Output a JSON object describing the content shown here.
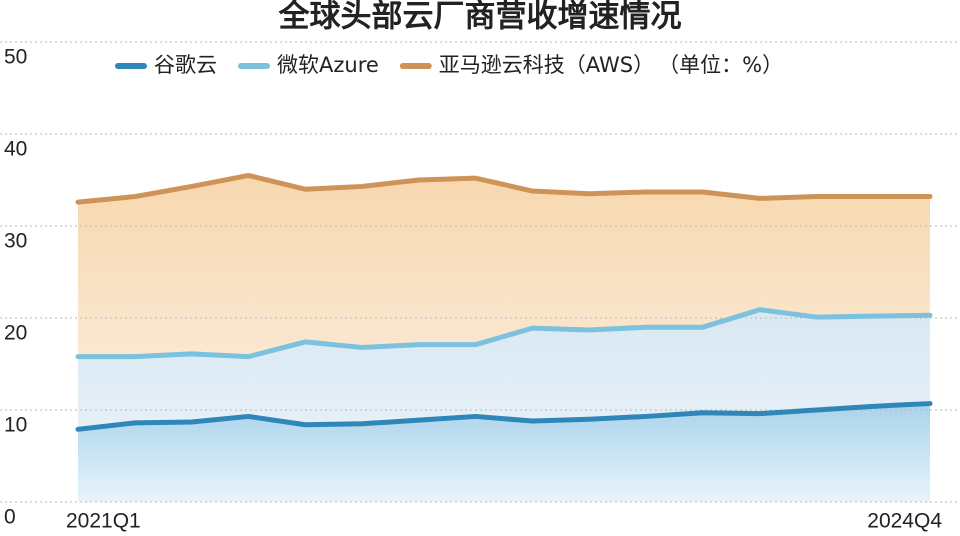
{
  "chart_data": {
    "type": "line",
    "title": "全球头部云厂商营收增速情况",
    "unit": "（单位：%）",
    "categories": [
      "2021Q1",
      null,
      null,
      null,
      null,
      null,
      null,
      null,
      null,
      null,
      null,
      null,
      null,
      null,
      null,
      "2024Q4"
    ],
    "series": [
      {
        "name": "谷歌云",
        "color": "#2f86b8",
        "values": [
          7.9,
          8.6,
          8.7,
          9.3,
          8.4,
          8.5,
          8.9,
          9.3,
          8.8,
          9.0,
          9.3,
          9.7,
          9.6,
          10.0,
          10.4,
          10.7
        ]
      },
      {
        "name": "微软Azure",
        "color": "#7cc1de",
        "values": [
          15.8,
          15.8,
          16.1,
          15.8,
          17.4,
          16.8,
          17.1,
          17.1,
          18.9,
          18.7,
          19.0,
          19.0,
          20.9,
          20.1,
          20.2,
          20.3
        ]
      },
      {
        "name": "亚马逊云科技（AWS）",
        "color": "#cf9358",
        "values": [
          32.6,
          33.2,
          34.3,
          35.5,
          34.0,
          34.3,
          35.0,
          35.2,
          33.8,
          33.5,
          33.7,
          33.7,
          33.0,
          33.2,
          33.2,
          33.2
        ]
      }
    ],
    "ylim": [
      0,
      50
    ],
    "yticks": [
      0,
      10,
      20,
      30,
      40,
      50
    ],
    "grid": true
  }
}
